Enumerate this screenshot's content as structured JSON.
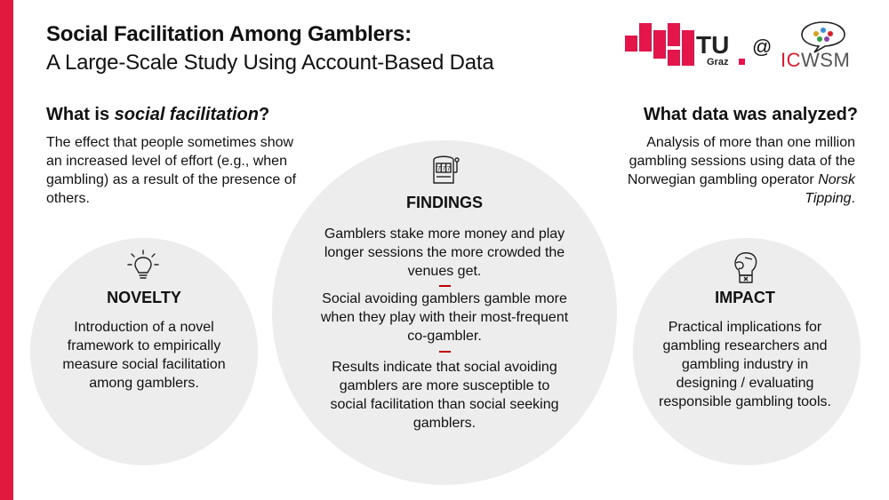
{
  "colors": {
    "accent": "#e2193f",
    "tu_red": "#e4154b",
    "circle_bg": "#ededed",
    "divider": "#c00000"
  },
  "header": {
    "title": "Social Facilitation Among Gamblers:",
    "subtitle": "A Large-Scale Study Using Account-Based Data"
  },
  "logos": {
    "tu_text": "TU",
    "tu_sub": "Graz",
    "at": "@",
    "icwsm_ic": "IC",
    "icwsm_wsm": "WSM"
  },
  "what_is": {
    "heading_prefix": "What is ",
    "heading_emph": "social facilitation",
    "heading_suffix": "?",
    "text": "The effect that people sometimes show an increased level of effort (e.g., when gambling) as a result of the presence of others."
  },
  "what_data": {
    "heading": "What data was analyzed?",
    "text": "Analysis of more than one million gambling sessions using data of the Norwegian gambling operator",
    "text_emph": "Norsk Tipping",
    "text_end": "."
  },
  "novelty": {
    "icon": "lightbulb-icon",
    "heading": "NOVELTY",
    "text": "Introduction of a novel framework to empirically measure social facilitation among gamblers."
  },
  "findings": {
    "icon": "slot-machine-icon",
    "heading": "FINDINGS",
    "items": [
      "Gamblers stake more money and play longer sessions the more crowded the venues get.",
      "Social avoiding gamblers gamble more when they play with their most-frequent co-gambler.",
      "Results indicate that social avoiding gamblers are more susceptible to social facilitation than social seeking gamblers."
    ]
  },
  "impact": {
    "icon": "boxing-glove-icon",
    "heading": "IMPACT",
    "text": "Practical implications for gambling researchers and gambling industry in designing / evaluating responsible gambling tools."
  }
}
